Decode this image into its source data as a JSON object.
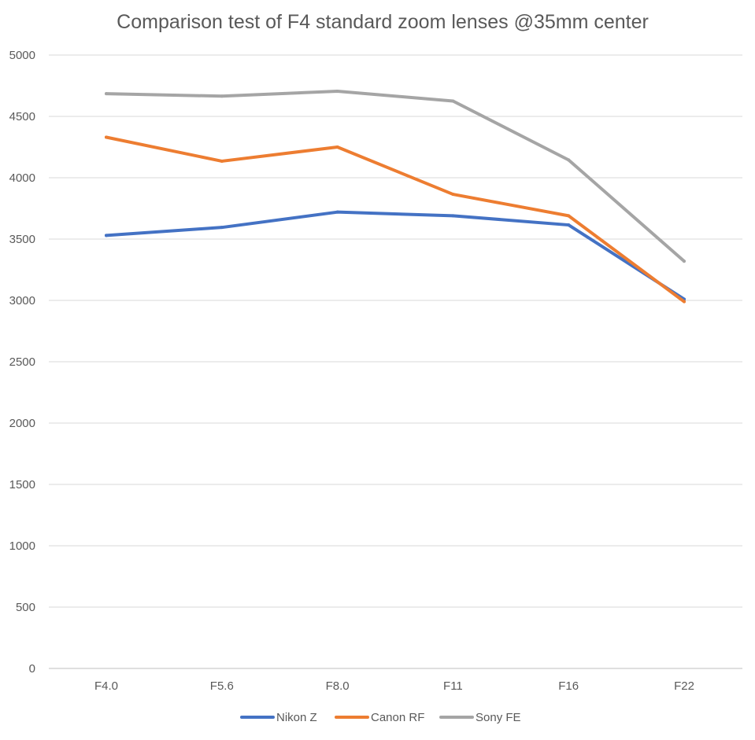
{
  "chart_data": {
    "type": "line",
    "title": "Comparison test of F4 standard zoom lenses @35mm center",
    "xlabel": "",
    "ylabel": "",
    "categories": [
      "F4.0",
      "F5.6",
      "F8.0",
      "F11",
      "F16",
      "F22"
    ],
    "ylim": [
      0,
      5000
    ],
    "yticks": [
      0,
      500,
      1000,
      1500,
      2000,
      2500,
      3000,
      3500,
      4000,
      4500,
      5000
    ],
    "grid": true,
    "legend_position": "bottom",
    "series": [
      {
        "name": "Nikon Z",
        "color": "#4472C4",
        "values": [
          3530,
          3595,
          3720,
          3690,
          3615,
          3010
        ]
      },
      {
        "name": "Canon RF",
        "color": "#ED7D31",
        "values": [
          4330,
          4135,
          4250,
          3865,
          3690,
          2990
        ]
      },
      {
        "name": "Sony FE",
        "color": "#A5A5A5",
        "values": [
          4685,
          4665,
          4705,
          4625,
          4145,
          3320
        ]
      }
    ]
  }
}
